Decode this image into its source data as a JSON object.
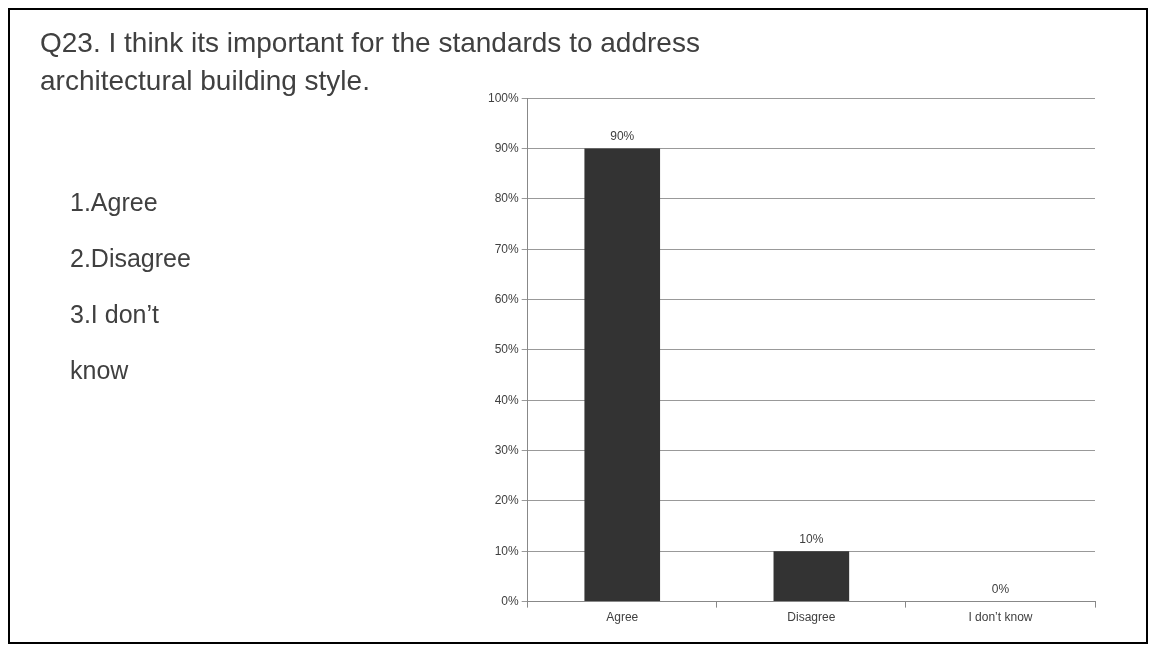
{
  "chart_data": {
    "type": "bar",
    "title": "Q23. I think its important for the standards to address architectural building style.",
    "categories": [
      "Agree",
      "Disagree",
      "I don’t know"
    ],
    "values": [
      90,
      10,
      0
    ],
    "value_labels": [
      "90%",
      "10%",
      "0%"
    ],
    "color": "#333333",
    "ylim": [
      0,
      100
    ],
    "yticks": [
      {
        "value": 0,
        "label": "0%"
      },
      {
        "value": 10,
        "label": "10%"
      },
      {
        "value": 20,
        "label": "20%"
      },
      {
        "value": 30,
        "label": "30%"
      },
      {
        "value": 40,
        "label": "40%"
      },
      {
        "value": 50,
        "label": "50%"
      },
      {
        "value": 60,
        "label": "60%"
      },
      {
        "value": 70,
        "label": "70%"
      },
      {
        "value": 80,
        "label": "80%"
      },
      {
        "value": 90,
        "label": "90%"
      },
      {
        "value": 100,
        "label": "100%"
      }
    ],
    "grid": "y",
    "annotations": [
      "1.Agree",
      "2.Disagree",
      "3.I don’t know"
    ]
  }
}
